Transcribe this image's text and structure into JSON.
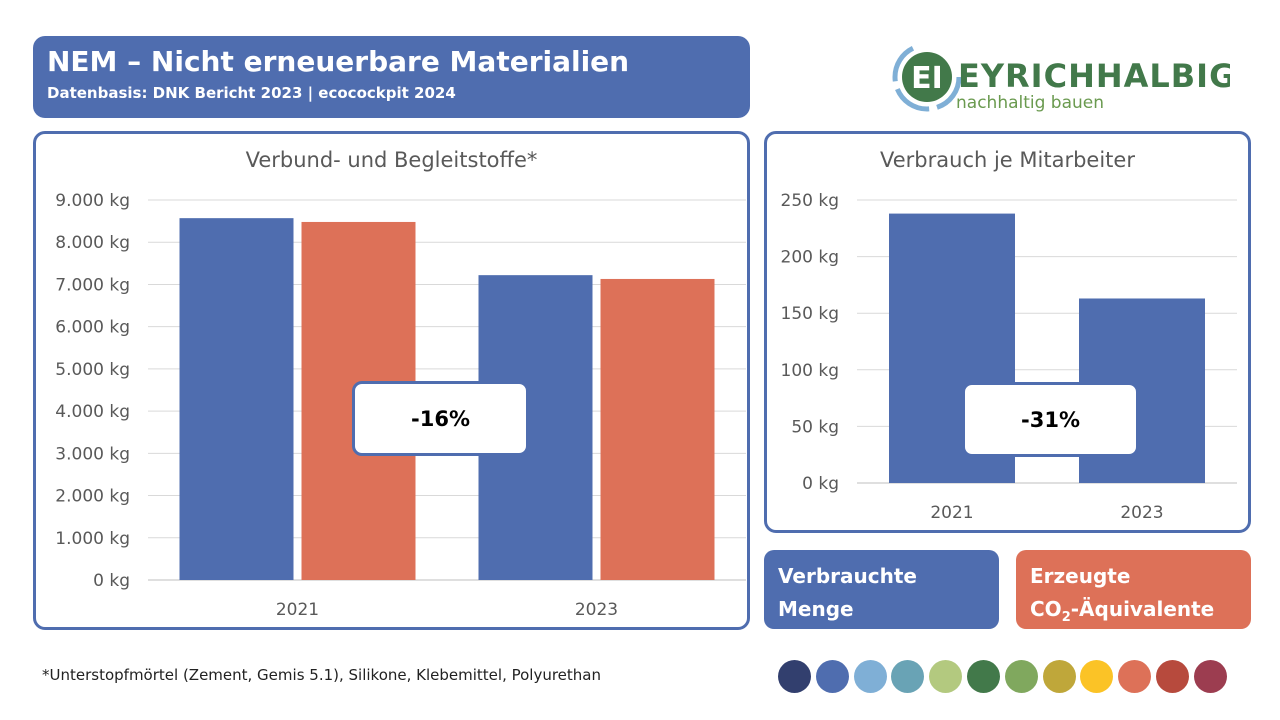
{
  "header": {
    "title": "NEM – Nicht erneuerbare Materialien",
    "subtitle": "Datenbasis: DNK Bericht 2023 | ecocockpit 2024"
  },
  "logo": {
    "text": "EYRICHHALBIG",
    "tagline": "nachhaltig bauen"
  },
  "chart_data": [
    {
      "type": "bar",
      "title": "Verbund- und Begleitstoffe*",
      "categories": [
        "2021",
        "2023"
      ],
      "series": [
        {
          "name": "Verbrauchte Menge",
          "color": "#4f6daf",
          "values": [
            8570,
            7220
          ]
        },
        {
          "name": "Erzeugte CO2-Äquivalente",
          "color": "#dd7158",
          "values": [
            8480,
            7130
          ]
        }
      ],
      "ylim": [
        0,
        9000
      ],
      "yticks": [
        "0 kg",
        "1.000 kg",
        "2.000 kg",
        "3.000 kg",
        "4.000 kg",
        "5.000 kg",
        "6.000 kg",
        "7.000 kg",
        "8.000 kg",
        "9.000 kg"
      ],
      "annotation": "-16%"
    },
    {
      "type": "bar",
      "title": "Verbrauch je Mitarbeiter",
      "categories": [
        "2021",
        "2023"
      ],
      "series": [
        {
          "name": "Verbrauchte Menge",
          "color": "#4f6daf",
          "values": [
            238,
            163
          ]
        }
      ],
      "ylim": [
        0,
        250
      ],
      "yticks": [
        "0 kg",
        "50 kg",
        "100 kg",
        "150 kg",
        "200 kg",
        "250 kg"
      ],
      "annotation": "-31%"
    }
  ],
  "legend": {
    "consumed": "Verbrauchte Menge",
    "co2_prefix": "Erzeugte",
    "co2_main": "CO",
    "co2_sub": "2",
    "co2_suffix": "-Äquivalente"
  },
  "footnote": "*Unterstopfmörtel (Zement, Gemis 5.1), Silikone, Klebemittel, Polyurethan",
  "palette": [
    "#323f6e",
    "#4f6daf",
    "#7fafd6",
    "#69a3b5",
    "#b3c97f",
    "#42794a",
    "#80a85e",
    "#bfa73a",
    "#fbc326",
    "#dd7158",
    "#b74a3d",
    "#9c3d50"
  ]
}
